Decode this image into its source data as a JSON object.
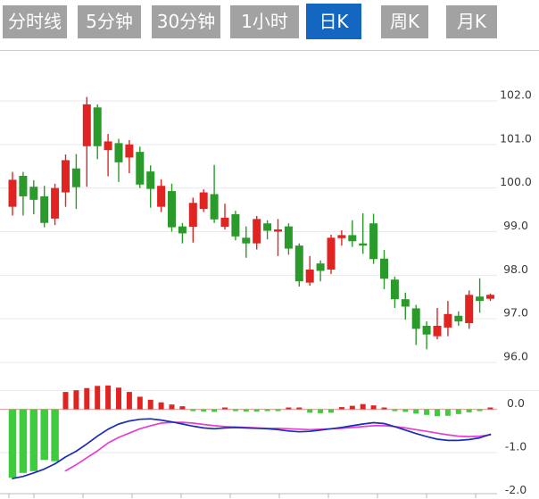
{
  "tabs": [
    {
      "label": "分时线",
      "active": false
    },
    {
      "label": "5分钟",
      "active": false
    },
    {
      "label": "30分钟",
      "active": false
    },
    {
      "label": "1小时",
      "active": false
    },
    {
      "label": "日K",
      "active": true
    },
    {
      "label": "周K",
      "active": false
    },
    {
      "label": "月K",
      "active": false
    }
  ],
  "colors": {
    "tab_inactive_bg": "#a2a2a2",
    "tab_active_bg": "#1467c0",
    "tab_text": "#ffffff"
  },
  "chart_data": {
    "type": "candlestick",
    "panels": [
      "price",
      "macd"
    ],
    "grid": true,
    "legend": "none",
    "price_axis": {
      "side": "right",
      "tick_labels": [
        "102.0",
        "101.0",
        "100.0",
        "99.0",
        "98.0",
        "97.0",
        "96.0"
      ],
      "tick_values": [
        102,
        101,
        100,
        99,
        98,
        97,
        96
      ]
    },
    "macd_axis": {
      "side": "right",
      "tick_labels": [
        "0.0",
        "-1.0",
        "-2.0"
      ],
      "tick_values": [
        0,
        -1,
        -2
      ]
    },
    "up_color": "#e02422",
    "down_color": "#2a9b2a",
    "hist_up_color": "#e02422",
    "hist_down_color": "#3ecc3e",
    "dif_color": "#1b2db5",
    "dea_color": "#e63fd0",
    "zero_line_color": "#e8a8a8",
    "grid_color": "#e9e9e9",
    "axis_color": "#c9c9c9",
    "ohlc": [
      [
        99.57,
        100.37,
        99.37,
        100.19
      ],
      [
        100.28,
        100.37,
        99.37,
        99.81
      ],
      [
        100.03,
        100.18,
        99.4,
        99.73
      ],
      [
        99.81,
        100.05,
        99.1,
        99.2
      ],
      [
        99.3,
        100.1,
        99.15,
        100.0
      ],
      [
        99.9,
        100.77,
        99.57,
        100.64
      ],
      [
        100.45,
        100.78,
        99.52,
        100.02
      ],
      [
        100.96,
        102.09,
        100.03,
        101.92
      ],
      [
        101.85,
        101.92,
        100.66,
        100.96
      ],
      [
        100.87,
        101.24,
        100.27,
        101.07
      ],
      [
        101.03,
        101.13,
        100.14,
        100.59
      ],
      [
        100.7,
        101.1,
        100.34,
        101.0
      ],
      [
        100.83,
        100.95,
        100.0,
        100.08
      ],
      [
        100.38,
        100.52,
        99.55,
        99.98
      ],
      [
        99.57,
        100.2,
        99.45,
        100.05
      ],
      [
        99.93,
        100.1,
        99.0,
        99.1
      ],
      [
        99.12,
        99.2,
        98.73,
        98.96
      ],
      [
        99.11,
        99.78,
        98.75,
        99.66
      ],
      [
        99.52,
        99.97,
        99.45,
        99.9
      ],
      [
        99.86,
        100.53,
        99.2,
        99.28
      ],
      [
        99.11,
        99.64,
        99.05,
        99.32
      ],
      [
        99.4,
        99.48,
        98.8,
        98.89
      ],
      [
        98.86,
        99.12,
        98.4,
        98.73
      ],
      [
        98.73,
        99.36,
        98.59,
        99.29
      ],
      [
        99.19,
        99.26,
        98.82,
        99.02
      ],
      [
        99.0,
        99.29,
        98.44,
        99.05
      ],
      [
        99.12,
        99.19,
        98.47,
        98.61
      ],
      [
        98.68,
        98.73,
        97.74,
        97.86
      ],
      [
        97.83,
        98.44,
        97.76,
        98.13
      ],
      [
        98.27,
        98.34,
        97.86,
        98.1
      ],
      [
        98.13,
        98.93,
        98.03,
        98.86
      ],
      [
        98.85,
        99.03,
        98.68,
        98.92
      ],
      [
        98.92,
        99.26,
        98.65,
        98.78
      ],
      [
        98.73,
        99.42,
        98.49,
        98.68
      ],
      [
        99.19,
        99.41,
        98.26,
        98.37
      ],
      [
        98.38,
        98.58,
        97.68,
        97.92
      ],
      [
        97.9,
        97.97,
        97.25,
        97.45
      ],
      [
        97.45,
        97.6,
        96.98,
        97.28
      ],
      [
        97.24,
        97.32,
        96.4,
        96.77
      ],
      [
        96.84,
        96.94,
        96.3,
        96.64
      ],
      [
        96.6,
        97.25,
        96.53,
        96.84
      ],
      [
        96.8,
        97.41,
        96.6,
        97.11
      ],
      [
        97.07,
        97.17,
        96.84,
        96.94
      ],
      [
        96.9,
        97.65,
        96.77,
        97.55
      ],
      [
        97.51,
        97.93,
        97.14,
        97.41
      ],
      [
        97.46,
        97.58,
        97.41,
        97.55
      ]
    ],
    "macd": {
      "histogram": [
        -1.58,
        -1.47,
        -1.43,
        -1.17,
        -1.2,
        0.4,
        0.44,
        0.49,
        0.54,
        0.55,
        0.5,
        0.4,
        0.29,
        0.22,
        0.16,
        0.11,
        0.07,
        -0.04,
        -0.05,
        -0.06,
        0.03,
        -0.04,
        -0.05,
        -0.05,
        -0.04,
        -0.04,
        0.03,
        0.04,
        -0.08,
        -0.09,
        -0.08,
        0.05,
        0.08,
        0.12,
        0.09,
        0.04,
        -0.02,
        -0.06,
        -0.1,
        -0.13,
        -0.16,
        -0.15,
        -0.11,
        -0.07,
        -0.04,
        0.04
      ],
      "dif": [
        -1.6,
        -1.55,
        -1.47,
        -1.38,
        -1.26,
        -1.1,
        -0.97,
        -0.8,
        -0.62,
        -0.46,
        -0.34,
        -0.27,
        -0.23,
        -0.22,
        -0.25,
        -0.29,
        -0.34,
        -0.39,
        -0.43,
        -0.45,
        -0.43,
        -0.42,
        -0.43,
        -0.44,
        -0.45,
        -0.47,
        -0.5,
        -0.52,
        -0.51,
        -0.48,
        -0.45,
        -0.42,
        -0.38,
        -0.34,
        -0.31,
        -0.33,
        -0.4,
        -0.48,
        -0.56,
        -0.63,
        -0.69,
        -0.72,
        -0.72,
        -0.7,
        -0.66,
        -0.58
      ],
      "dea": [
        null,
        null,
        null,
        null,
        null,
        -1.42,
        -1.28,
        -1.12,
        -0.96,
        -0.78,
        -0.65,
        -0.55,
        -0.45,
        -0.38,
        -0.32,
        -0.3,
        -0.3,
        -0.32,
        -0.35,
        -0.38,
        -0.4,
        -0.41,
        -0.42,
        -0.43,
        -0.44,
        -0.44,
        -0.45,
        -0.46,
        -0.47,
        -0.46,
        -0.45,
        -0.44,
        -0.42,
        -0.4,
        -0.38,
        -0.38,
        -0.4,
        -0.43,
        -0.47,
        -0.51,
        -0.55,
        -0.59,
        -0.62,
        -0.63,
        -0.62,
        -0.59
      ]
    }
  }
}
